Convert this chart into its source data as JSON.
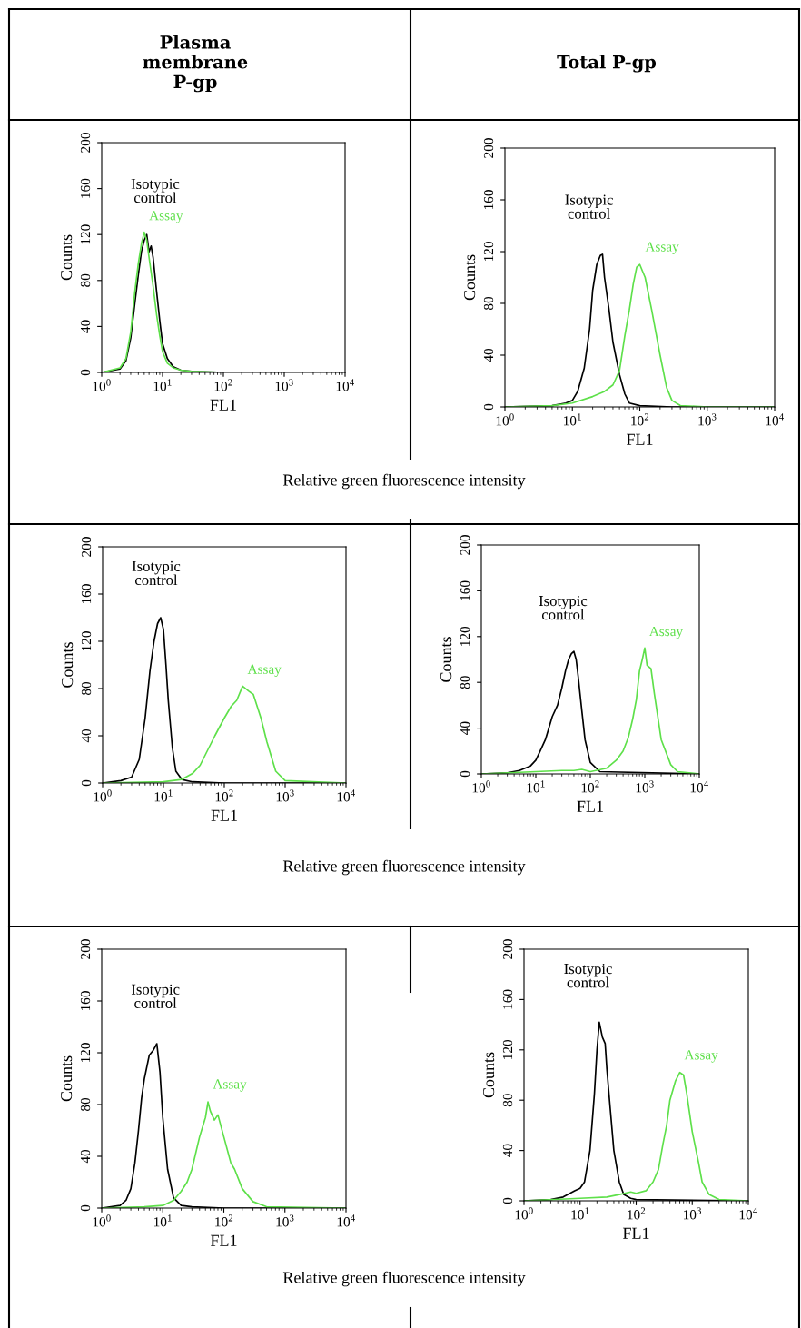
{
  "chart_data": [
    {
      "type": "line",
      "title": "Plasma\nmembrane\nP-gp",
      "xlabel": "FL1",
      "ylabel": "Counts",
      "log": "x",
      "xlim": [
        1,
        10000
      ],
      "ylim": [
        0,
        200
      ],
      "xticks": [
        {
          "value": 1,
          "label": "10$^{0}$"
        },
        {
          "value": 10,
          "label": "10$^{1}$"
        },
        {
          "value": 100,
          "label": "10$^{2}$"
        },
        {
          "value": 1000,
          "label": "10$^{3}$"
        },
        {
          "value": 10000,
          "label": "10$^{4}$"
        }
      ],
      "yticks": [
        0,
        40,
        80,
        120,
        160,
        200
      ],
      "grid": false,
      "legend": false,
      "annotations": [
        "Relative green fluorescence intensity"
      ],
      "series": [
        {
          "name": "Isotypic control",
          "color": "#000000",
          "x": [
            1,
            2,
            2.5,
            3,
            3.5,
            4,
            4.5,
            5,
            5.5,
            6,
            6.5,
            7,
            8,
            9,
            10,
            12,
            15,
            20,
            30,
            100,
            10000
          ],
          "values": [
            0,
            3,
            10,
            30,
            60,
            85,
            105,
            115,
            120,
            105,
            110,
            100,
            70,
            45,
            25,
            12,
            5,
            2,
            1,
            0,
            0
          ]
        },
        {
          "name": "Assay",
          "color": "#5ee04a",
          "x": [
            1,
            2,
            2.5,
            3,
            3.5,
            4,
            4.5,
            5,
            5.5,
            6,
            7,
            8,
            9,
            10,
            12,
            15,
            20,
            30,
            100,
            10000
          ],
          "values": [
            0,
            4,
            12,
            35,
            70,
            95,
            112,
            122,
            115,
            100,
            75,
            50,
            32,
            18,
            8,
            4,
            2,
            1,
            0,
            0
          ]
        }
      ]
    },
    {
      "type": "line",
      "title": "Total P-gp",
      "xlabel": "FL1",
      "ylabel": "Counts",
      "log": "x",
      "xlim": [
        1,
        10000
      ],
      "ylim": [
        0,
        200
      ],
      "xticks": [
        {
          "value": 1,
          "label": "10$^{0}$"
        },
        {
          "value": 10,
          "label": "10$^{1}$"
        },
        {
          "value": 100,
          "label": "10$^{2}$"
        },
        {
          "value": 1000,
          "label": "10$^{3}$"
        },
        {
          "value": 10000,
          "label": "10$^{4}$"
        }
      ],
      "yticks": [
        0,
        40,
        80,
        120,
        160,
        200
      ],
      "grid": false,
      "legend": false,
      "series": [
        {
          "name": "Isotypic control",
          "color": "#000000",
          "x": [
            1,
            5,
            8,
            10,
            12,
            15,
            18,
            20,
            23,
            26,
            28,
            30,
            35,
            40,
            50,
            60,
            70,
            100,
            300,
            10000
          ],
          "values": [
            0,
            1,
            3,
            5,
            12,
            30,
            60,
            90,
            110,
            117,
            118,
            100,
            75,
            50,
            25,
            10,
            3,
            1,
            0,
            0
          ]
        },
        {
          "name": "Assay",
          "color": "#5ee04a",
          "x": [
            1,
            5,
            10,
            20,
            30,
            40,
            50,
            60,
            70,
            80,
            90,
            100,
            120,
            150,
            200,
            250,
            300,
            400,
            1000,
            10000
          ],
          "values": [
            0,
            1,
            3,
            8,
            12,
            17,
            28,
            55,
            75,
            95,
            108,
            110,
            100,
            75,
            40,
            15,
            5,
            1,
            0,
            0
          ]
        }
      ]
    },
    {
      "type": "line",
      "xlabel": "FL1",
      "ylabel": "Counts",
      "log": "x",
      "xlim": [
        1,
        10000
      ],
      "ylim": [
        0,
        200
      ],
      "xticks": [
        {
          "value": 1,
          "label": "10$^{0}$"
        },
        {
          "value": 10,
          "label": "10$^{1}$"
        },
        {
          "value": 100,
          "label": "10$^{2}$"
        },
        {
          "value": 1000,
          "label": "10$^{3}$"
        },
        {
          "value": 10000,
          "label": "10$^{4}$"
        }
      ],
      "yticks": [
        0,
        40,
        80,
        120,
        160,
        200
      ],
      "grid": false,
      "legend": false,
      "annotations": [
        "Relative green fluorescence intensity"
      ],
      "series": [
        {
          "name": "Isotypic control",
          "color": "#000000",
          "x": [
            1,
            2,
            3,
            4,
            5,
            6,
            7,
            8,
            9,
            10,
            11,
            12,
            14,
            16,
            20,
            30,
            100,
            10000
          ],
          "values": [
            0,
            2,
            5,
            20,
            55,
            95,
            120,
            135,
            140,
            130,
            100,
            70,
            30,
            10,
            3,
            1,
            0,
            0
          ]
        },
        {
          "name": "Assay",
          "color": "#5ee04a",
          "x": [
            1,
            10,
            20,
            30,
            40,
            50,
            70,
            100,
            130,
            160,
            200,
            250,
            300,
            400,
            500,
            700,
            1000,
            10000
          ],
          "values": [
            0,
            1,
            3,
            8,
            15,
            25,
            40,
            55,
            65,
            70,
            82,
            78,
            75,
            55,
            35,
            10,
            2,
            0
          ]
        }
      ]
    },
    {
      "type": "line",
      "xlabel": "FL1",
      "ylabel": "Counts",
      "log": "x",
      "xlim": [
        1,
        10000
      ],
      "ylim": [
        0,
        200
      ],
      "xticks": [
        {
          "value": 1,
          "label": "10$^{0}$"
        },
        {
          "value": 10,
          "label": "10$^{1}$"
        },
        {
          "value": 100,
          "label": "10$^{2}$"
        },
        {
          "value": 1000,
          "label": "10$^{3}$"
        },
        {
          "value": 10000,
          "label": "10$^{4}$"
        }
      ],
      "yticks": [
        0,
        40,
        80,
        120,
        160,
        200
      ],
      "grid": false,
      "legend": false,
      "series": [
        {
          "name": "Isotypic control",
          "color": "#000000",
          "x": [
            1,
            3,
            5,
            8,
            10,
            12,
            15,
            20,
            25,
            30,
            35,
            40,
            45,
            50,
            55,
            60,
            70,
            80,
            100,
            150,
            10000
          ],
          "values": [
            0,
            1,
            3,
            7,
            12,
            20,
            30,
            50,
            60,
            75,
            90,
            100,
            105,
            107,
            100,
            85,
            55,
            30,
            10,
            2,
            0
          ]
        },
        {
          "name": "Assay",
          "color": "#5ee04a",
          "x": [
            1,
            10,
            30,
            50,
            70,
            100,
            200,
            300,
            400,
            500,
            600,
            700,
            800,
            900,
            1000,
            1100,
            1300,
            1500,
            2000,
            3000,
            4000,
            10000
          ],
          "values": [
            0,
            2,
            3,
            3,
            4,
            2,
            5,
            12,
            20,
            32,
            48,
            65,
            90,
            100,
            110,
            95,
            92,
            70,
            30,
            8,
            2,
            0
          ]
        }
      ]
    },
    {
      "type": "line",
      "xlabel": "FL1",
      "ylabel": "Counts",
      "log": "x",
      "xlim": [
        1,
        10000
      ],
      "ylim": [
        0,
        200
      ],
      "xticks": [
        {
          "value": 1,
          "label": "10$^{0}$"
        },
        {
          "value": 10,
          "label": "10$^{1}$"
        },
        {
          "value": 100,
          "label": "10$^{2}$"
        },
        {
          "value": 1000,
          "label": "10$^{3}$"
        },
        {
          "value": 10000,
          "label": "10$^{4}$"
        }
      ],
      "yticks": [
        0,
        40,
        80,
        120,
        160,
        200
      ],
      "grid": false,
      "legend": false,
      "annotations": [
        "Relative green fluorescence intensity"
      ],
      "series": [
        {
          "name": "Isotypic control",
          "color": "#000000",
          "x": [
            1,
            2,
            2.5,
            3,
            3.5,
            4,
            4.5,
            5,
            6,
            7,
            8,
            9,
            10,
            12,
            15,
            20,
            30,
            100,
            10000
          ],
          "values": [
            0,
            2,
            6,
            15,
            35,
            60,
            85,
            100,
            118,
            122,
            127,
            105,
            70,
            30,
            8,
            2,
            1,
            0,
            0
          ]
        },
        {
          "name": "Assay",
          "color": "#5ee04a",
          "x": [
            1,
            5,
            10,
            15,
            20,
            25,
            30,
            40,
            50,
            55,
            60,
            70,
            80,
            100,
            130,
            150,
            200,
            300,
            500,
            10000
          ],
          "values": [
            0,
            1,
            2,
            6,
            13,
            20,
            30,
            55,
            70,
            82,
            75,
            68,
            72,
            55,
            35,
            30,
            15,
            5,
            1,
            0
          ]
        }
      ]
    },
    {
      "type": "line",
      "xlabel": "FL1",
      "ylabel": "Counts",
      "log": "x",
      "xlim": [
        1,
        10000
      ],
      "ylim": [
        0,
        200
      ],
      "xticks": [
        {
          "value": 1,
          "label": "10$^{0}$"
        },
        {
          "value": 10,
          "label": "10$^{1}$"
        },
        {
          "value": 100,
          "label": "10$^{2}$"
        },
        {
          "value": 1000,
          "label": "10$^{3}$"
        },
        {
          "value": 10000,
          "label": "10$^{4}$"
        }
      ],
      "yticks": [
        0,
        40,
        80,
        120,
        160,
        200
      ],
      "grid": false,
      "legend": false,
      "series": [
        {
          "name": "Isotypic control",
          "color": "#000000",
          "x": [
            1,
            3,
            5,
            8,
            10,
            12,
            15,
            18,
            20,
            22,
            25,
            28,
            30,
            35,
            40,
            50,
            60,
            80,
            100,
            10000
          ],
          "values": [
            0,
            1,
            3,
            8,
            10,
            15,
            40,
            85,
            120,
            142,
            130,
            125,
            105,
            70,
            40,
            15,
            5,
            2,
            1,
            0
          ]
        },
        {
          "name": "Assay",
          "color": "#5ee04a",
          "x": [
            1,
            10,
            30,
            50,
            80,
            100,
            150,
            200,
            250,
            300,
            350,
            400,
            500,
            600,
            700,
            800,
            1000,
            1300,
            1500,
            2000,
            3000,
            10000
          ],
          "values": [
            0,
            2,
            3,
            5,
            7,
            6,
            8,
            15,
            25,
            45,
            60,
            80,
            95,
            102,
            100,
            85,
            55,
            30,
            15,
            5,
            1,
            0
          ]
        }
      ]
    }
  ]
}
